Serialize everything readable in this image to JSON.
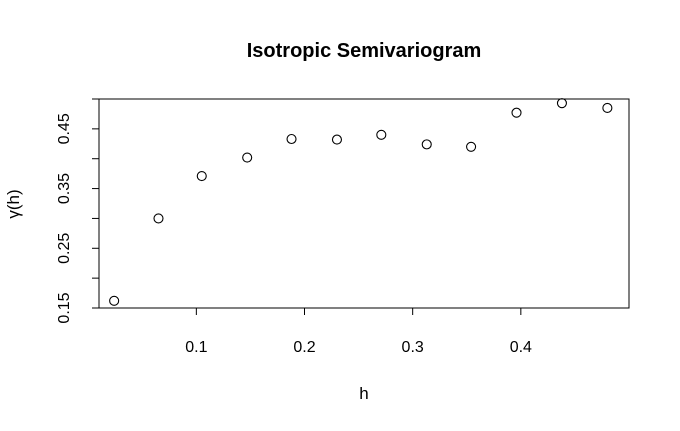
{
  "chart_data": {
    "type": "scatter",
    "title": "Isotropic Semivariogram",
    "xlabel": "h",
    "ylabel": "γ(h)",
    "xlim": [
      0.01,
      0.5
    ],
    "ylim": [
      0.15,
      0.5
    ],
    "x_ticks": [
      {
        "value": 0.1,
        "label": "0.1"
      },
      {
        "value": 0.2,
        "label": "0.2"
      },
      {
        "value": 0.3,
        "label": "0.3"
      },
      {
        "value": 0.4,
        "label": "0.4"
      }
    ],
    "y_ticks": [
      {
        "value": 0.15,
        "label": "0.15"
      },
      {
        "value": 0.2,
        "label": ""
      },
      {
        "value": 0.25,
        "label": "0.25"
      },
      {
        "value": 0.3,
        "label": ""
      },
      {
        "value": 0.35,
        "label": "0.35"
      },
      {
        "value": 0.4,
        "label": ""
      },
      {
        "value": 0.45,
        "label": "0.45"
      },
      {
        "value": 0.5,
        "label": ""
      }
    ],
    "points": [
      {
        "x": 0.024,
        "y": 0.162
      },
      {
        "x": 0.065,
        "y": 0.3
      },
      {
        "x": 0.105,
        "y": 0.371
      },
      {
        "x": 0.147,
        "y": 0.402
      },
      {
        "x": 0.188,
        "y": 0.433
      },
      {
        "x": 0.23,
        "y": 0.432
      },
      {
        "x": 0.271,
        "y": 0.44
      },
      {
        "x": 0.313,
        "y": 0.424
      },
      {
        "x": 0.354,
        "y": 0.42
      },
      {
        "x": 0.396,
        "y": 0.477
      },
      {
        "x": 0.438,
        "y": 0.493
      },
      {
        "x": 0.48,
        "y": 0.485
      }
    ],
    "grid": false,
    "marker": "open-circle"
  }
}
